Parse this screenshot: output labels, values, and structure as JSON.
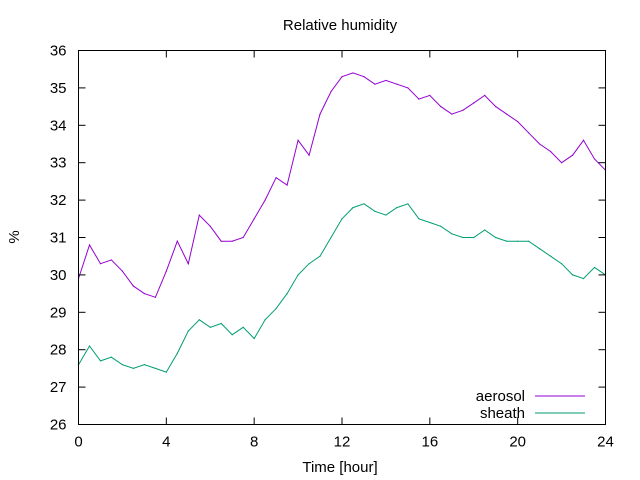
{
  "chart_data": {
    "type": "line",
    "title": "Relative humidity",
    "xlabel": "Time [hour]",
    "ylabel": "%",
    "xlim": [
      0,
      24
    ],
    "ylim": [
      26,
      36
    ],
    "xticks": [
      0,
      4,
      8,
      12,
      16,
      20,
      24
    ],
    "yticks": [
      26,
      27,
      28,
      29,
      30,
      31,
      32,
      33,
      34,
      35,
      36
    ],
    "grid": false,
    "legend_position": "bottom-right",
    "series": [
      {
        "name": "aerosol",
        "color": "#9400d3",
        "x": [
          0,
          0.5,
          1,
          1.5,
          2,
          2.5,
          3,
          3.5,
          4,
          4.5,
          5,
          5.5,
          6,
          6.5,
          7,
          7.5,
          8,
          8.5,
          9,
          9.5,
          10,
          10.5,
          11,
          11.5,
          12,
          12.5,
          13,
          13.5,
          14,
          14.5,
          15,
          15.5,
          16,
          16.5,
          17,
          17.5,
          18,
          18.5,
          19,
          19.5,
          20,
          20.5,
          21,
          21.5,
          22,
          22.5,
          23,
          23.5,
          24
        ],
        "y": [
          29.9,
          30.8,
          30.3,
          30.4,
          30.1,
          29.7,
          29.5,
          29.4,
          30.1,
          30.9,
          30.3,
          31.6,
          31.3,
          30.9,
          30.9,
          31.0,
          31.5,
          32.0,
          32.6,
          32.4,
          33.6,
          33.2,
          34.3,
          34.9,
          35.3,
          35.4,
          35.3,
          35.1,
          35.2,
          35.1,
          35.0,
          34.7,
          34.8,
          34.5,
          34.3,
          34.4,
          34.6,
          34.8,
          34.5,
          34.3,
          34.1,
          33.8,
          33.5,
          33.3,
          33.0,
          33.2,
          33.6,
          33.1,
          32.8
        ]
      },
      {
        "name": "sheath",
        "color": "#009e73",
        "x": [
          0,
          0.5,
          1,
          1.5,
          2,
          2.5,
          3,
          3.5,
          4,
          4.5,
          5,
          5.5,
          6,
          6.5,
          7,
          7.5,
          8,
          8.5,
          9,
          9.5,
          10,
          10.5,
          11,
          11.5,
          12,
          12.5,
          13,
          13.5,
          14,
          14.5,
          15,
          15.5,
          16,
          16.5,
          17,
          17.5,
          18,
          18.5,
          19,
          19.5,
          20,
          20.5,
          21,
          21.5,
          22,
          22.5,
          23,
          23.5,
          24
        ],
        "y": [
          27.6,
          28.1,
          27.7,
          27.8,
          27.6,
          27.5,
          27.6,
          27.5,
          27.4,
          27.9,
          28.5,
          28.8,
          28.6,
          28.7,
          28.4,
          28.6,
          28.3,
          28.8,
          29.1,
          29.5,
          30.0,
          30.3,
          30.5,
          31.0,
          31.5,
          31.8,
          31.9,
          31.7,
          31.6,
          31.8,
          31.9,
          31.5,
          31.4,
          31.3,
          31.1,
          31.0,
          31.0,
          31.2,
          31.0,
          30.9,
          30.9,
          30.9,
          30.7,
          30.5,
          30.3,
          30.0,
          29.9,
          30.2,
          30.0
        ]
      }
    ]
  }
}
